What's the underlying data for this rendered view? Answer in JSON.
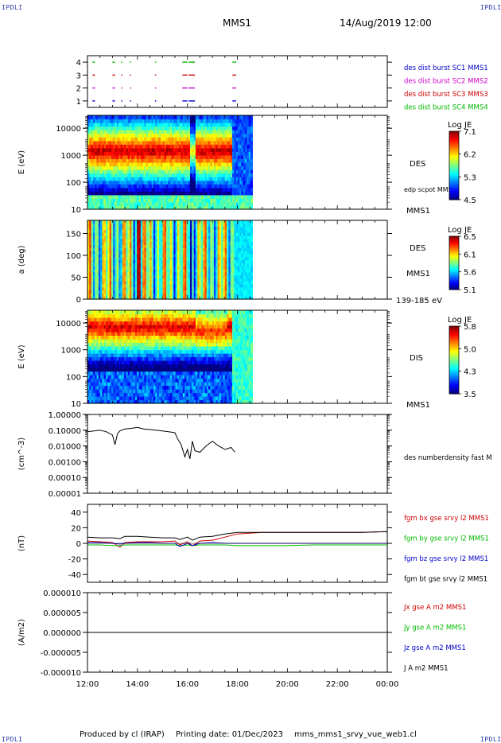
{
  "corner_label": "IPDLI",
  "header": {
    "spacecraft": "MMS1",
    "datetime": "14/Aug/2019 12:00"
  },
  "footer": {
    "produced_by": "Produced by cl (IRAP)",
    "printing_date": "Printing date: 01/Dec/2023",
    "filename": "mms_mms1_srvy_vue_web1.cl"
  },
  "colors": {
    "black": "#000000",
    "red": "#cc0000",
    "green": "#00bb00",
    "blue": "#0000cc",
    "magenta": "#cc00cc",
    "axis": "#000000"
  },
  "chart_data": [
    {
      "panel": "burst",
      "type": "scatter",
      "yticks": [
        "1",
        "2",
        "3",
        "4"
      ],
      "ylim": [
        0.5,
        4.5
      ],
      "legend": [
        {
          "text": "des dist burst SC1 MMS1",
          "color": "#0000cc"
        },
        {
          "text": "des dist burst SC2 MMS2",
          "color": "#cc00cc"
        },
        {
          "text": "des dist burst SC3 MMS3",
          "color": "#cc0000"
        },
        {
          "text": "des dist burst SC4 MMS4",
          "color": "#00bb00"
        }
      ],
      "intervals_hours": [
        [
          12.2,
          12.3
        ],
        [
          13.0,
          13.1
        ],
        [
          13.35,
          13.4
        ],
        [
          13.7,
          13.75
        ],
        [
          14.7,
          14.75
        ],
        [
          15.8,
          16.0
        ],
        [
          16.05,
          16.3
        ],
        [
          17.8,
          17.95
        ]
      ]
    },
    {
      "panel": "des_energy",
      "type": "heatmap",
      "ylabel": "E (eV)",
      "yscale": "log",
      "ylim": [
        10,
        30000
      ],
      "yticks": [
        "10",
        "100",
        "1000",
        "10000"
      ],
      "label": "DES",
      "overlay_label": "edp scpot MMS1",
      "bottom_label": "MMS1",
      "colorbar": {
        "title": "Log JE",
        "ticks": [
          "7.1",
          "6.2",
          "5.3",
          "4.5"
        ],
        "range": [
          4.5,
          7.1
        ]
      }
    },
    {
      "panel": "des_pitch",
      "type": "heatmap",
      "ylabel": "a (deg)",
      "ylim": [
        0,
        180
      ],
      "yticks": [
        "0",
        "50",
        "100",
        "150"
      ],
      "label": "DES",
      "label2": "MMS1",
      "energy_range": "139-185 eV",
      "colorbar": {
        "title": "Log JE",
        "ticks": [
          "6.5",
          "6.1",
          "5.6",
          "5.1"
        ],
        "range": [
          5.1,
          6.5
        ]
      }
    },
    {
      "panel": "dis_energy",
      "type": "heatmap",
      "ylabel": "E (eV)",
      "yscale": "log",
      "ylim": [
        10,
        30000
      ],
      "yticks": [
        "10",
        "100",
        "1000",
        "10000"
      ],
      "label": "DIS",
      "bottom_label": "MMS1",
      "colorbar": {
        "title": "Log JE",
        "ticks": [
          "5.8",
          "5.0",
          "4.3",
          "3.5"
        ],
        "range": [
          3.5,
          5.8
        ]
      }
    },
    {
      "panel": "density",
      "type": "line",
      "ylabel": "(cm^-3)",
      "yscale": "log",
      "ylim": [
        0.0001,
        1.0
      ],
      "yticks": [
        "1.00000",
        "0.10000",
        "0.01000",
        "0.00100",
        "0.00010",
        "0.00001"
      ],
      "legend": [
        {
          "text": "des numberdensity fast M",
          "color": "#000000"
        }
      ],
      "x": [
        12.0,
        12.25,
        12.5,
        12.75,
        13.0,
        13.1,
        13.2,
        13.3,
        13.5,
        13.75,
        14.0,
        14.25,
        14.5,
        14.75,
        15.0,
        15.25,
        15.5,
        15.6,
        15.75,
        15.9,
        16.0,
        16.1,
        16.2,
        16.3,
        16.5,
        16.75,
        17.0,
        17.25,
        17.5,
        17.75,
        17.9
      ],
      "y": [
        0.08,
        0.09,
        0.1,
        0.08,
        0.05,
        0.012,
        0.06,
        0.09,
        0.12,
        0.13,
        0.15,
        0.12,
        0.11,
        0.1,
        0.09,
        0.08,
        0.07,
        0.03,
        0.012,
        0.002,
        0.006,
        0.0015,
        0.02,
        0.005,
        0.004,
        0.01,
        0.02,
        0.01,
        0.006,
        0.008,
        0.004
      ]
    },
    {
      "panel": "fgm",
      "type": "line",
      "ylabel": "(nT)",
      "ylim": [
        -50,
        50
      ],
      "yticks": [
        "40",
        "20",
        "0",
        "-20",
        "-40"
      ],
      "legend": [
        {
          "text": "fgm bx gse srvy l2 MMS1",
          "color": "#cc0000"
        },
        {
          "text": "fgm by gse srvy l2 MMS1",
          "color": "#00bb00"
        },
        {
          "text": "fgm bz gse srvy l2 MMS1",
          "color": "#0000cc"
        },
        {
          "text": "fgm bt gse srvy l2 MMS1",
          "color": "#000000"
        }
      ],
      "x": [
        12.0,
        12.5,
        13.0,
        13.3,
        13.5,
        14.0,
        14.5,
        15.0,
        15.5,
        15.7,
        16.0,
        16.2,
        16.5,
        17.0,
        17.5,
        18.0,
        18.5,
        19.0,
        20.0,
        21.0,
        22.0,
        23.0,
        24.0
      ],
      "series": [
        {
          "name": "bx",
          "values": [
            3,
            2,
            1,
            -5,
            1,
            2,
            2,
            2,
            3,
            -2,
            2,
            -3,
            3,
            4,
            8,
            12,
            13,
            14,
            14,
            14,
            14,
            14,
            15
          ]
        },
        {
          "name": "by",
          "values": [
            -2,
            -2,
            -3,
            -3,
            -2,
            -2,
            -2,
            -2,
            -2,
            -3,
            -2,
            -3,
            -2,
            -2,
            -2,
            -3,
            -3,
            -3,
            -3,
            -2,
            -2,
            -2,
            -2
          ]
        },
        {
          "name": "bz",
          "values": [
            1,
            1,
            0,
            -1,
            0,
            1,
            1,
            0,
            0,
            -4,
            0,
            -3,
            0,
            1,
            0,
            0,
            0,
            0,
            0,
            0,
            0,
            0,
            0
          ]
        },
        {
          "name": "bt",
          "values": [
            8,
            7,
            7,
            6,
            9,
            9,
            8,
            7,
            7,
            5,
            8,
            4,
            8,
            9,
            12,
            14,
            14,
            14,
            14,
            14,
            14,
            14,
            15
          ]
        }
      ]
    },
    {
      "panel": "current",
      "type": "line",
      "ylabel": "(A/m2)",
      "ylim": [
        -1e-05,
        1e-05
      ],
      "yticks": [
        "0.000010",
        "0.000005",
        "0.000000",
        "-0.000005",
        "-0.000010"
      ],
      "legend": [
        {
          "text": "Jx gse A m2 MMS1",
          "color": "#cc0000"
        },
        {
          "text": "Jy gse A m2 MMS1",
          "color": "#00bb00"
        },
        {
          "text": "Jz gse A m2 MMS1",
          "color": "#0000cc"
        },
        {
          "text": "J A m2 MMS1",
          "color": "#000000"
        }
      ],
      "x": [
        12.0,
        24.0
      ],
      "y": [
        0,
        0
      ]
    }
  ],
  "xaxis": {
    "ticks": [
      "12:00",
      "14:00",
      "16:00",
      "18:00",
      "20:00",
      "22:00",
      "00:00"
    ],
    "range_hours": [
      12,
      24
    ]
  }
}
